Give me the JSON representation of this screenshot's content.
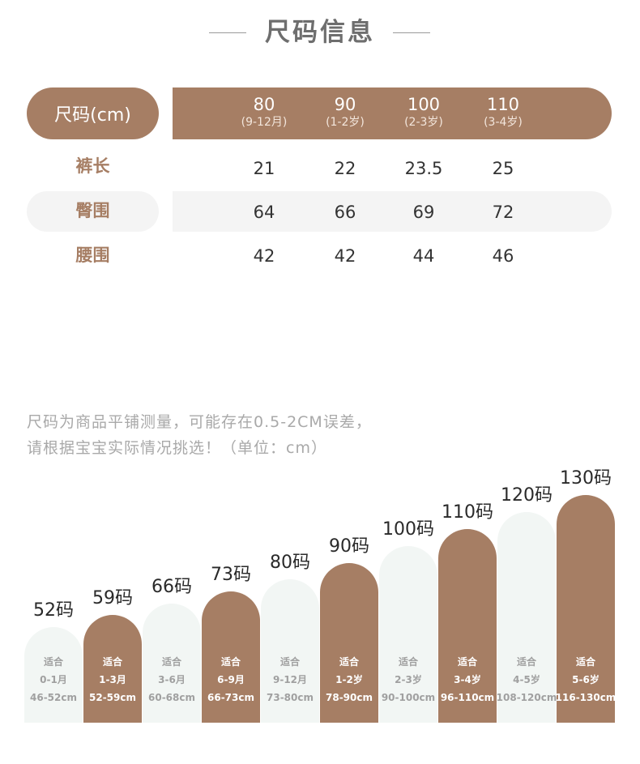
{
  "title": "尺码信息",
  "table": {
    "header_label": "尺码(cm)",
    "sizes": [
      {
        "size": "80",
        "age": "(9-12月)"
      },
      {
        "size": "90",
        "age": "(1-2岁)"
      },
      {
        "size": "100",
        "age": "(2-3岁)"
      },
      {
        "size": "110",
        "age": "(3-4岁)"
      }
    ],
    "rows": [
      {
        "label": "裤长",
        "values": [
          "21",
          "22",
          "23.5",
          "25"
        ]
      },
      {
        "label": "臀围",
        "values": [
          "64",
          "66",
          "69",
          "72"
        ]
      },
      {
        "label": "腰围",
        "values": [
          "42",
          "42",
          "44",
          "46"
        ]
      }
    ]
  },
  "note": {
    "line1": "尺码为商品平铺测量，可能存在0.5-2CM误差，",
    "line2": "请根据宝宝实际情况挑选！（单位：cm）"
  },
  "size_chart": {
    "suit_label": "适合",
    "colors": {
      "accent": "#a67e64",
      "light_bar": "#f2f6f4"
    },
    "bars": [
      {
        "code": "52码",
        "age": "0-1月",
        "range": "46-52cm",
        "style": "light",
        "level": 52
      },
      {
        "code": "59码",
        "age": "1-3月",
        "range": "52-59cm",
        "style": "dark",
        "level": 59
      },
      {
        "code": "66码",
        "age": "3-6月",
        "range": "60-68cm",
        "style": "light",
        "level": 66
      },
      {
        "code": "73码",
        "age": "6-9月",
        "range": "66-73cm",
        "style": "dark",
        "level": 73
      },
      {
        "code": "80码",
        "age": "9-12月",
        "range": "73-80cm",
        "style": "light",
        "level": 80
      },
      {
        "code": "90码",
        "age": "1-2岁",
        "range": "78-90cm",
        "style": "dark",
        "level": 90
      },
      {
        "code": "100码",
        "age": "2-3岁",
        "range": "90-100cm",
        "style": "light",
        "level": 100
      },
      {
        "code": "110码",
        "age": "3-4岁",
        "range": "96-110cm",
        "style": "dark",
        "level": 110
      },
      {
        "code": "120码",
        "age": "4-5岁",
        "range": "108-120cm",
        "style": "light",
        "level": 120
      },
      {
        "code": "130码",
        "age": "5-6岁",
        "range": "116-130cm",
        "style": "dark",
        "level": 130
      }
    ]
  }
}
